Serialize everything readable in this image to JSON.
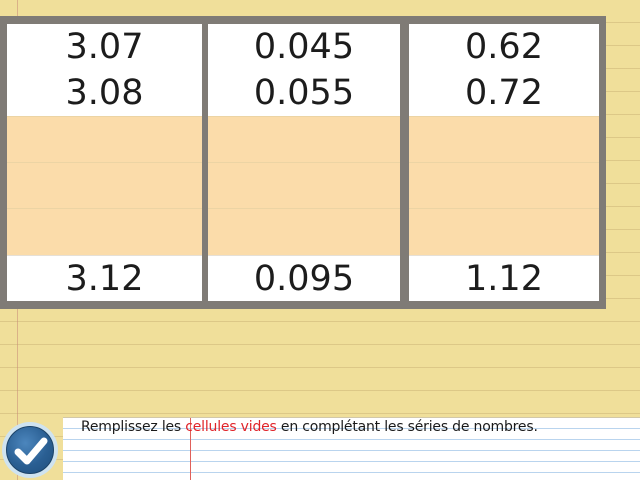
{
  "table": {
    "columns": [
      {
        "first": "3.07",
        "second": "3.08",
        "last": "3.12"
      },
      {
        "first": "0.045",
        "second": "0.055",
        "last": "0.095"
      },
      {
        "first": "0.62",
        "second": "0.72",
        "last": "1.12"
      }
    ],
    "empty_cell_color": "#fbdcaa"
  },
  "footer": {
    "instruction_before": "Remplissez les ",
    "instruction_highlight": "cellules vides",
    "instruction_after": " en complétant les séries de nombres.",
    "highlight_color": "#e0242a"
  },
  "check_button": {
    "icon": "checkmark-icon",
    "color": "#2a5f93"
  }
}
